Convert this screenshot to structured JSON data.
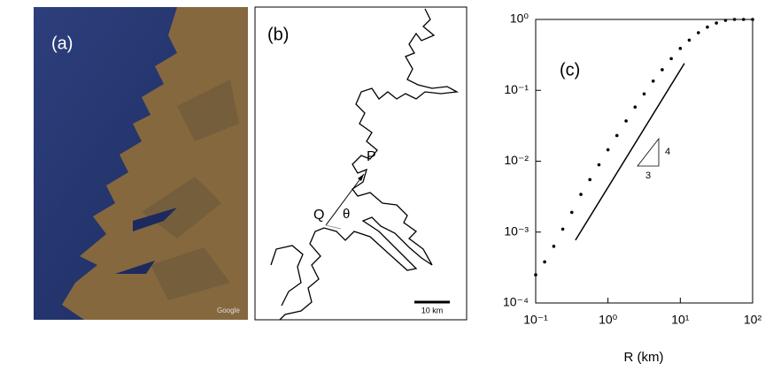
{
  "panel_a": {
    "label": "(a)",
    "watermark": "Google"
  },
  "panel_b": {
    "label": "(b)",
    "point_p": "P",
    "point_q": "Q",
    "angle": "θ",
    "scale_bar": "10 km"
  },
  "chart_data": {
    "type": "scatter",
    "annotation": "(c)",
    "xlabel": "R (km)",
    "xscale": "log",
    "yscale": "log",
    "xlim": [
      0.1,
      100
    ],
    "ylim": [
      0.0001,
      1
    ],
    "xticks": [
      {
        "value": 0.1,
        "label": "10⁻¹"
      },
      {
        "value": 1,
        "label": "10⁰"
      },
      {
        "value": 10,
        "label": "10¹"
      },
      {
        "value": 100,
        "label": "10²"
      }
    ],
    "yticks": [
      {
        "value": 0.0001,
        "label": "10⁻⁴"
      },
      {
        "value": 0.001,
        "label": "10⁻³"
      },
      {
        "value": 0.01,
        "label": "10⁻²"
      },
      {
        "value": 0.1,
        "label": "10⁻¹"
      },
      {
        "value": 1,
        "label": "10⁰"
      }
    ],
    "slope_rise": "4",
    "slope_run": "3",
    "series": [
      {
        "style": "dots",
        "color": "#000000",
        "x": [
          0.1,
          0.133,
          0.178,
          0.237,
          0.316,
          0.422,
          0.562,
          0.75,
          1,
          1.33,
          1.78,
          2.37,
          3.16,
          4.22,
          5.62,
          7.5,
          10,
          13.3,
          17.8,
          23.7,
          31.6,
          42.2,
          56.2,
          75,
          100
        ],
        "values": [
          0.00025,
          0.00038,
          0.00063,
          0.0011,
          0.0019,
          0.0034,
          0.0055,
          0.0089,
          0.0145,
          0.023,
          0.037,
          0.058,
          0.089,
          0.135,
          0.195,
          0.28,
          0.39,
          0.51,
          0.65,
          0.78,
          0.89,
          0.97,
          1,
          1,
          1
        ]
      },
      {
        "style": "line",
        "color": "#000000",
        "x": [
          0.355,
          11.4
        ],
        "values": [
          0.00077,
          0.24
        ]
      }
    ]
  }
}
